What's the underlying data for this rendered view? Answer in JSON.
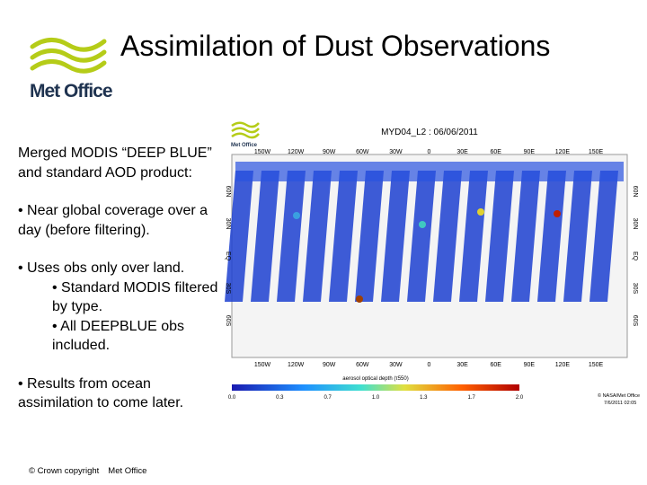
{
  "header": {
    "title": "Assimilation of Dust Observations",
    "logo_text": "Met Office"
  },
  "body": {
    "intro": "Merged MODIS “DEEP BLUE” and standard AOD product:",
    "bullets": [
      {
        "text": "• Near global coverage over a day (before filtering)."
      },
      {
        "text": "• Uses obs only over land.",
        "sub_bullets": [
          "• Standard MODIS filtered by type.",
          "• All DEEPBLUE obs included."
        ]
      },
      {
        "text": "• Results from ocean assimilation to come later."
      }
    ]
  },
  "figure": {
    "title": "MYD04_L2 : 06/06/2011",
    "logo_text": "Met Office",
    "lon_labels": [
      "150W",
      "120W",
      "90W",
      "60W",
      "30W",
      "0",
      "30E",
      "60E",
      "90E",
      "120E",
      "150E"
    ],
    "lat_labels": [
      "60N",
      "30N",
      "EQ",
      "30S",
      "60S"
    ],
    "colorbar_label": "aerosol optical depth (τ550)",
    "colorbar_ticks": [
      "0.0",
      "0.3",
      "0.7",
      "1.0",
      "1.3",
      "1.7",
      "2.0"
    ],
    "credit": "© NASA/Met Office",
    "timestamp": "7/6/2011 02:05"
  },
  "footer": {
    "copyright": "© Crown copyright",
    "organisation": "Met Office"
  }
}
